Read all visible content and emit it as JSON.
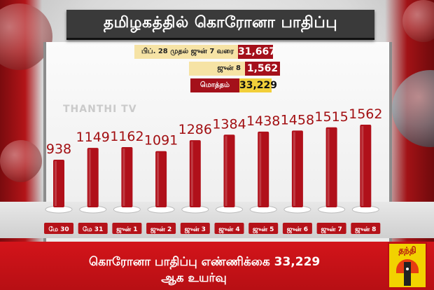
{
  "title": "தமிழகத்தில் கொரோனா பாதிப்பு",
  "summary": [
    {
      "label": "பிப். 28 முதல் ஜுன் 7 வரை",
      "value": "31,667",
      "label_bg": "#f6e3a5",
      "value_bg": "#a4101a"
    },
    {
      "label": "ஜுன் 8",
      "value": "1,562",
      "label_bg": "#f6e3a5",
      "value_bg": "#a4101a"
    },
    {
      "label": "மொத்தம்",
      "value": "33,229",
      "label_bg": "#a4101a",
      "label_color": "#ffffff",
      "value_bg": "#f2cf3a",
      "value_color": "#111111"
    }
  ],
  "watermark": "THANTHI TV",
  "chart_data": {
    "type": "bar",
    "categories": [
      "மே 30",
      "மே 31",
      "ஜுன் 1",
      "ஜுன் 2",
      "ஜுன் 3",
      "ஜுன் 4",
      "ஜுன் 5",
      "ஜுன் 6",
      "ஜுன் 7",
      "ஜுன் 8"
    ],
    "values": [
      938,
      1149,
      1162,
      1091,
      1286,
      1384,
      1438,
      1458,
      1515,
      1562
    ],
    "title": "தமிழகத்தில் கொரோனா பாதிப்பு",
    "xlabel": "",
    "ylabel": "",
    "grid": false,
    "bar_color": "#b0101a",
    "tick_bg": "#b51219"
  },
  "ticker": {
    "line1": "கொரோனா பாதிப்பு எண்ணிக்கை  33,229",
    "line2": "ஆக உயர்வு"
  },
  "logo": {
    "text": "தந்தி"
  },
  "colors": {
    "accent": "#c8141a",
    "title_bg": "#3a3a3a"
  }
}
